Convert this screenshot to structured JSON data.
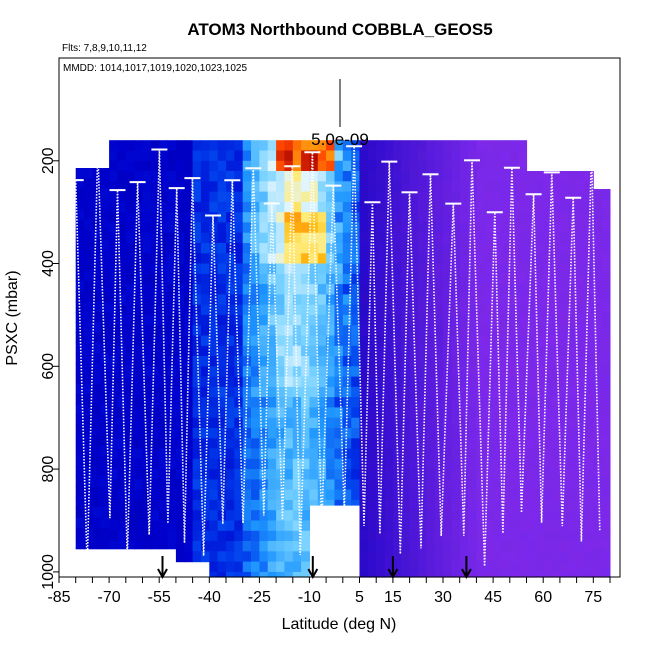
{
  "chart_data": {
    "type": "heatmap",
    "title": "ATOM3 Northbound COBBLA_GEOS5",
    "flights_label": "Flts: 7,8,9,10,11,12",
    "dates_label": "MMDD: 1014,1017,1019,1020,1023,1025",
    "scale_label": "5.0e-09",
    "xlabel": "Latitude (deg N)",
    "ylabel": "PSXC (mbar)",
    "xlim": [
      -85,
      83
    ],
    "ylim": [
      1010,
      0
    ],
    "x_ticks": [
      -85,
      -70,
      -55,
      -40,
      -25,
      -10,
      5,
      15,
      30,
      45,
      60,
      75
    ],
    "x_tick_labels": [
      "-85",
      "-70",
      "-55",
      "-40",
      "-25",
      "-10",
      "5",
      "15",
      "30",
      "45",
      "60",
      "75"
    ],
    "y_ticks": [
      200,
      400,
      600,
      800,
      1000
    ],
    "y_tick_labels": [
      "200",
      "400",
      "600",
      "800",
      "1000"
    ],
    "arrow_latitudes": [
      -54,
      -9,
      15,
      37
    ],
    "colors": {
      "low": "#0000b4",
      "mid_blue": "#1e90ff",
      "light": "#e0f4ff",
      "yellow": "#ffd23c",
      "red": "#b40000",
      "violet": "#7b2be0"
    }
  }
}
